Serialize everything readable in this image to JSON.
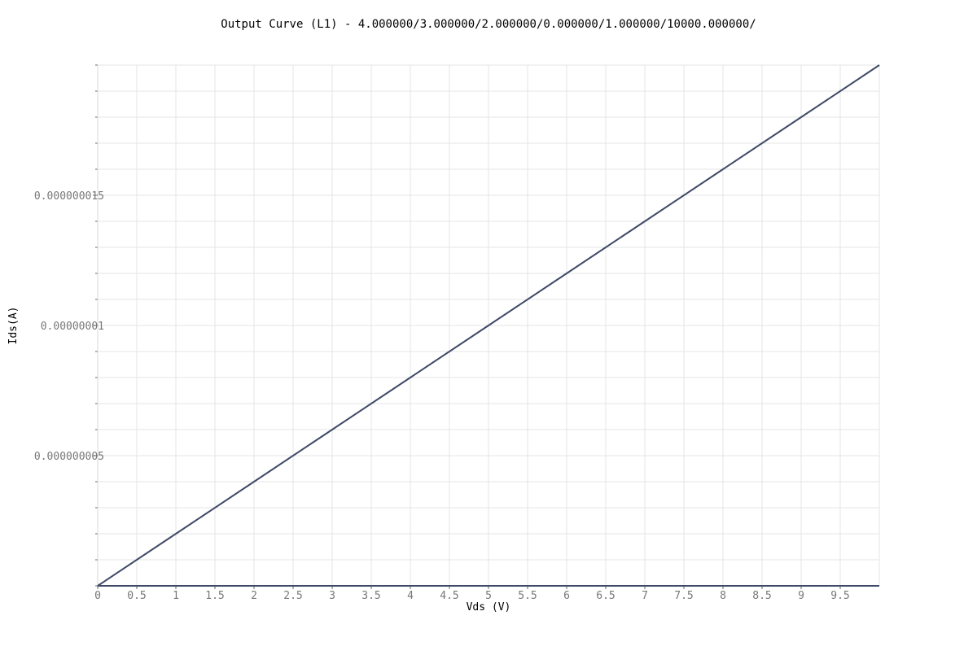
{
  "chart_data": {
    "type": "line",
    "title": "Output Curve (L1) - 4.000000/3.000000/2.000000/0.000000/1.000000/10000.000000/",
    "xlabel": "Vds (V)",
    "ylabel": "Ids(A)",
    "xlim": [
      0,
      10
    ],
    "ylim": [
      0,
      2e-08
    ],
    "grid": true,
    "x_ticks": [
      0,
      0.5,
      1,
      1.5,
      2,
      2.5,
      3,
      3.5,
      4,
      4.5,
      5,
      5.5,
      6,
      6.5,
      7,
      7.5,
      8,
      8.5,
      9,
      9.5
    ],
    "x_tick_labels": [
      "0",
      "0.5",
      "1",
      "1.5",
      "2",
      "2.5",
      "3",
      "3.5",
      "4",
      "4.5",
      "5",
      "5.5",
      "6",
      "6.5",
      "7",
      "7.5",
      "8",
      "8.5",
      "9",
      "9.5"
    ],
    "y_ticks": [
      5e-09,
      1e-08,
      1.5e-08
    ],
    "y_tick_labels": [
      "0.000000005",
      "0.00000001",
      "0.000000015"
    ],
    "series": [
      {
        "color": "#3f4a66",
        "x": [
          0,
          1,
          2,
          3,
          4,
          5,
          6,
          7,
          8,
          9,
          10
        ],
        "y": [
          0,
          2e-09,
          4e-09,
          6e-09,
          8e-09,
          1e-08,
          1.2e-08,
          1.4e-08,
          1.6e-08,
          1.8e-08,
          2e-08
        ]
      },
      {
        "color": "#3f4a66",
        "x": [
          0,
          10
        ],
        "y": [
          0,
          0
        ]
      }
    ]
  }
}
